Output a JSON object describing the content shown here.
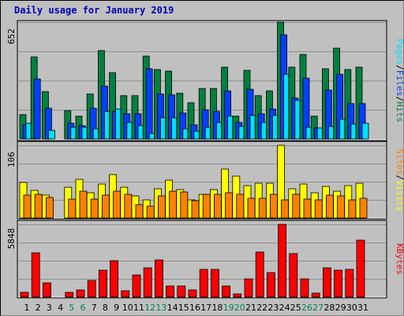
{
  "title": "Daily usage for January 2019",
  "colors": {
    "hits": "#008040",
    "files": "#0040ff",
    "pages": "#00e0ff",
    "visits": "#ffff00",
    "sites": "#ff8000",
    "kbytes": "#ff0000",
    "weekend_label": "#00805c",
    "weekday_label": "#000000",
    "panel_bg": "#c0c0c0"
  },
  "chart_data": [
    {
      "type": "bar",
      "panel": "hits-files-pages",
      "ymax_label": "652",
      "right_label": [
        "Pages",
        "Files",
        "Hits"
      ],
      "categories": [
        "1",
        "2",
        "3",
        "4",
        "5",
        "6",
        "7",
        "8",
        "9",
        "10",
        "11",
        "12",
        "13",
        "14",
        "15",
        "16",
        "17",
        "18",
        "19",
        "20",
        "21",
        "22",
        "23",
        "24",
        "25",
        "26",
        "27",
        "28",
        "29",
        "30",
        "31"
      ],
      "weekend_days": [
        5,
        6,
        12,
        13,
        19,
        20,
        26,
        27
      ],
      "ylim": [
        0,
        652
      ],
      "series": [
        {
          "name": "Hits",
          "values": [
            137,
            460,
            263,
            0,
            159,
            128,
            253,
            494,
            370,
            242,
            244,
            462,
            388,
            378,
            254,
            202,
            281,
            280,
            401,
            129,
            383,
            241,
            270,
            652,
            400,
            470,
            128,
            392,
            507,
            387,
            400
          ]
        },
        {
          "name": "Files",
          "values": [
            81,
            333,
            172,
            0,
            90,
            73,
            171,
            296,
            155,
            140,
            142,
            393,
            249,
            245,
            146,
            81,
            165,
            154,
            269,
            91,
            276,
            140,
            168,
            582,
            227,
            338,
            62,
            272,
            361,
            200,
            198
          ]
        },
        {
          "name": "Pages",
          "values": [
            86,
            0,
            48,
            0,
            64,
            64,
            56,
            153,
            166,
            94,
            75,
            31,
            120,
            120,
            56,
            42,
            65,
            92,
            128,
            70,
            133,
            94,
            131,
            362,
            215,
            64,
            62,
            70,
            110,
            84,
            87
          ]
        }
      ]
    },
    {
      "type": "bar",
      "panel": "visits-sites",
      "ymax_label": "106",
      "right_label": [
        "Sites",
        "Visits"
      ],
      "categories": [
        "1",
        "2",
        "3",
        "4",
        "5",
        "6",
        "7",
        "8",
        "9",
        "10",
        "11",
        "12",
        "13",
        "14",
        "15",
        "16",
        "17",
        "18",
        "19",
        "20",
        "21",
        "22",
        "23",
        "24",
        "25",
        "26",
        "27",
        "28",
        "29",
        "30",
        "31"
      ],
      "ylim": [
        0,
        106
      ],
      "series": [
        {
          "name": "Visits",
          "values": [
            52,
            40,
            33,
            0,
            45,
            57,
            37,
            50,
            63,
            45,
            32,
            26,
            43,
            55,
            41,
            26,
            35,
            41,
            72,
            61,
            47,
            51,
            51,
            106,
            43,
            50,
            37,
            46,
            39,
            47,
            51
          ]
        },
        {
          "name": "Sites",
          "values": [
            33,
            34,
            30,
            0,
            28,
            39,
            28,
            33,
            39,
            35,
            20,
            17,
            32,
            39,
            38,
            25,
            35,
            35,
            37,
            35,
            29,
            29,
            35,
            27,
            35,
            28,
            27,
            33,
            32,
            27,
            29
          ]
        }
      ]
    },
    {
      "type": "bar",
      "panel": "kbytes",
      "ymax_label": "5848",
      "right_label": [
        "KBytes"
      ],
      "categories": [
        "1",
        "2",
        "3",
        "4",
        "5",
        "6",
        "7",
        "8",
        "9",
        "10",
        "11",
        "12",
        "13",
        "14",
        "15",
        "16",
        "17",
        "18",
        "19",
        "20",
        "21",
        "22",
        "23",
        "24",
        "25",
        "26",
        "27",
        "28",
        "29",
        "30",
        "31"
      ],
      "ylim": [
        0,
        5848
      ],
      "series": [
        {
          "name": "KBytes",
          "values": [
            350,
            3560,
            1150,
            0,
            350,
            550,
            1340,
            2150,
            2910,
            540,
            1800,
            2360,
            3000,
            880,
            880,
            550,
            2220,
            2220,
            880,
            270,
            1440,
            3620,
            1940,
            5848,
            3470,
            1480,
            340,
            2350,
            2140,
            2220,
            4570
          ]
        }
      ]
    }
  ]
}
